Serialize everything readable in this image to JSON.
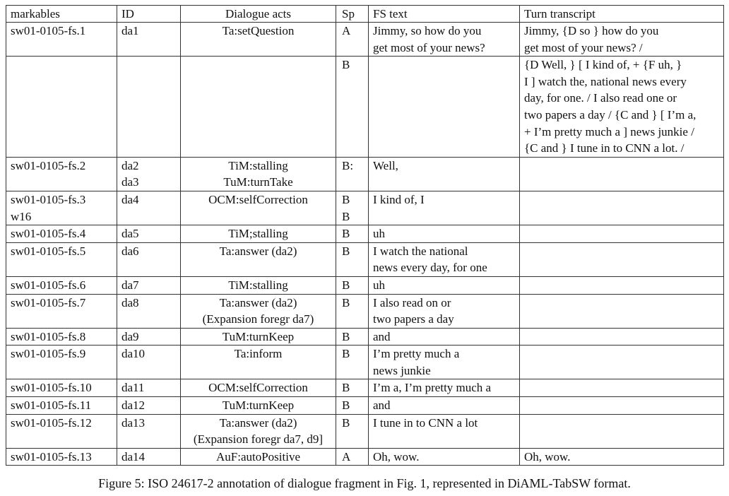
{
  "table": {
    "headers": [
      "markables",
      "ID",
      "Dialogue acts",
      "Sp",
      "FS text",
      "Turn transcript"
    ],
    "rows": [
      {
        "markables": "sw01-0105-fs.1",
        "id": "da1",
        "acts": "Ta:setQuestion",
        "sp": "A",
        "fs": "Jimmy, so how do you\nget most of your news?",
        "turn": "Jimmy, {D so } how do you\nget most of your news? /"
      },
      {
        "markables": "",
        "id": "",
        "acts": "",
        "sp": "B",
        "fs": "",
        "turn": "{D Well, } [ I kind of, + {F uh, }\nI ] watch the, national news every\nday, for one. / I also read one or\ntwo papers a day / {C and } [ I’m a,\n+ I’m pretty much a ] news junkie /\n{C and } I tune in to CNN a lot. /"
      },
      {
        "markables": "sw01-0105-fs.2",
        "id": "da2\nda3",
        "acts": "TiM:stalling\nTuM:turnTake",
        "sp": "B:",
        "fs": "Well,",
        "turn": ""
      },
      {
        "markables": "sw01-0105-fs.3\nw16",
        "id": "da4",
        "acts": "OCM:selfCorrection",
        "sp": "B\nB",
        "fs": "I kind of, I",
        "turn": ""
      },
      {
        "markables": "sw01-0105-fs.4",
        "id": "da5",
        "acts": "TiM;stalling",
        "sp": "B",
        "fs": "uh",
        "turn": ""
      },
      {
        "markables": "sw01-0105-fs.5",
        "id": "da6",
        "acts": "Ta:answer (da2)",
        "sp": "B",
        "fs": "I watch the national\nnews every day, for one",
        "turn": ""
      },
      {
        "markables": "sw01-0105-fs.6",
        "id": "da7",
        "acts": "TiM:stalling",
        "sp": "B",
        "fs": "uh",
        "turn": ""
      },
      {
        "markables": "sw01-0105-fs.7",
        "id": "da8",
        "acts": "Ta:answer (da2)\n(Expansion foregr da7)",
        "sp": "B",
        "fs": "I also read on or\ntwo papers a day",
        "turn": ""
      },
      {
        "markables": "sw01-0105-fs.8",
        "id": "da9",
        "acts": "TuM:turnKeep",
        "sp": "B",
        "fs": "and",
        "turn": ""
      },
      {
        "markables": "sw01-0105-fs.9",
        "id": "da10",
        "acts": "Ta:inform",
        "sp": "B",
        "fs": "I’m pretty much a\nnews junkie",
        "turn": ""
      },
      {
        "markables": "sw01-0105-fs.10",
        "id": "da11",
        "acts": "OCM:selfCorrection",
        "sp": "B",
        "fs": "I’m a, I’m pretty much a",
        "turn": ""
      },
      {
        "markables": "sw01-0105-fs.11",
        "id": "da12",
        "acts": "TuM:turnKeep",
        "sp": "B",
        "fs": "and",
        "turn": ""
      },
      {
        "markables": "sw01-0105-fs.12",
        "id": "da13",
        "acts": "Ta:answer (da2)\n(Expansion foregr da7, d9]",
        "sp": "B",
        "fs": "I tune in to CNN a lot",
        "turn": ""
      },
      {
        "markables": "sw01-0105-fs.13",
        "id": "da14",
        "acts": "AuF:autoPositive",
        "sp": "A",
        "fs": "Oh, wow.",
        "turn": "Oh, wow."
      }
    ]
  },
  "caption": "Figure 5: ISO 24617-2 annotation of dialogue fragment in Fig. 1, represented in DiAML-TabSW format."
}
